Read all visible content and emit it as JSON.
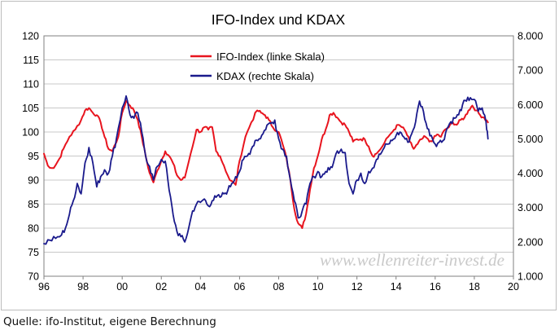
{
  "source": "Quelle: ifo-Institut, eigene Berechnung",
  "watermark": "www.wellenreiter-invest.de",
  "chart_data": {
    "type": "line",
    "title": "IFO-Index und KDAX",
    "xlabel": "",
    "ylabel": "",
    "x_range": [
      1996,
      2020
    ],
    "x_ticks": [
      1996,
      1998,
      2000,
      2002,
      2004,
      2006,
      2008,
      2010,
      2012,
      2014,
      2016,
      2018,
      2020
    ],
    "x_tick_labels": [
      "96",
      "98",
      "00",
      "02",
      "04",
      "06",
      "08",
      "10",
      "12",
      "14",
      "16",
      "18",
      "20"
    ],
    "y_left": {
      "range": [
        70,
        120
      ],
      "ticks": [
        70,
        75,
        80,
        85,
        90,
        95,
        100,
        105,
        110,
        115,
        120
      ],
      "tick_labels": [
        "70",
        "75",
        "80",
        "85",
        "90",
        "95",
        "100",
        "105",
        "110",
        "115",
        "120"
      ]
    },
    "y_right": {
      "range": [
        1000,
        8000
      ],
      "ticks": [
        1000,
        2000,
        3000,
        4000,
        5000,
        6000,
        7000,
        8000
      ],
      "tick_labels": [
        "1.000",
        "2.000",
        "3.000",
        "4.000",
        "5.000",
        "6.000",
        "7.000",
        "8.000"
      ]
    },
    "grid": true,
    "legend_position": "top-center",
    "series": [
      {
        "name": "IFO-Index (linke Skala)",
        "axis": "left",
        "color": "#e8141e",
        "x": [
          1996.0,
          1996.2,
          1996.5,
          1996.8,
          1997.0,
          1997.3,
          1997.6,
          1997.9,
          1998.1,
          1998.3,
          1998.5,
          1998.7,
          1998.9,
          1999.1,
          1999.3,
          1999.5,
          1999.8,
          2000.0,
          2000.2,
          2000.4,
          2000.6,
          2000.8,
          2001.0,
          2001.2,
          2001.4,
          2001.6,
          2001.8,
          2002.0,
          2002.2,
          2002.4,
          2002.6,
          2002.8,
          2003.0,
          2003.2,
          2003.5,
          2003.8,
          2004.0,
          2004.2,
          2004.4,
          2004.6,
          2004.8,
          2005.0,
          2005.2,
          2005.5,
          2005.8,
          2006.0,
          2006.3,
          2006.6,
          2006.9,
          2007.1,
          2007.3,
          2007.5,
          2007.7,
          2008.0,
          2008.2,
          2008.4,
          2008.6,
          2008.8,
          2009.0,
          2009.2,
          2009.4,
          2009.6,
          2009.8,
          2010.0,
          2010.2,
          2010.4,
          2010.6,
          2010.8,
          2011.0,
          2011.2,
          2011.4,
          2011.6,
          2011.8,
          2012.0,
          2012.2,
          2012.4,
          2012.6,
          2012.8,
          2013.0,
          2013.3,
          2013.6,
          2013.9,
          2014.1,
          2014.3,
          2014.5,
          2014.7,
          2014.9,
          2015.1,
          2015.3,
          2015.5,
          2015.7,
          2015.9,
          2016.1,
          2016.3,
          2016.5,
          2016.7,
          2016.9,
          2017.1,
          2017.3,
          2017.5,
          2017.7,
          2017.9,
          2018.1,
          2018.3,
          2018.5,
          2018.7
        ],
        "values": [
          95.5,
          93.0,
          92.5,
          94.5,
          96.5,
          99.0,
          100.5,
          102.5,
          104.5,
          105.0,
          104.0,
          103.5,
          102.0,
          99.0,
          96.5,
          96.0,
          99.0,
          104.0,
          106.5,
          105.5,
          104.5,
          102.5,
          99.0,
          95.0,
          91.5,
          89.5,
          92.0,
          94.0,
          96.0,
          95.0,
          93.5,
          91.0,
          90.0,
          90.5,
          95.5,
          100.5,
          100.0,
          101.0,
          100.5,
          101.0,
          96.0,
          95.0,
          93.0,
          90.0,
          89.0,
          94.0,
          99.0,
          102.0,
          104.5,
          104.0,
          103.5,
          102.5,
          101.0,
          100.0,
          97.5,
          94.5,
          90.0,
          84.0,
          81.0,
          80.0,
          83.0,
          88.0,
          92.5,
          95.0,
          98.5,
          100.5,
          103.5,
          104.0,
          103.0,
          102.0,
          101.5,
          100.0,
          98.0,
          98.5,
          98.5,
          98.5,
          97.0,
          95.0,
          95.5,
          97.0,
          99.0,
          100.5,
          101.5,
          101.0,
          100.0,
          98.0,
          96.5,
          97.5,
          98.5,
          99.0,
          98.0,
          98.5,
          99.5,
          99.0,
          100.5,
          101.0,
          102.0,
          101.5,
          102.5,
          103.0,
          104.5,
          105.5,
          104.5,
          103.5,
          103.0,
          102.0
        ]
      },
      {
        "name": "KDAX (rechte Skala)",
        "axis": "right",
        "color": "#1a1a8c",
        "x": [
          1996.0,
          1996.3,
          1996.6,
          1996.9,
          1997.1,
          1997.3,
          1997.5,
          1997.7,
          1997.9,
          1998.1,
          1998.3,
          1998.5,
          1998.7,
          1998.9,
          1999.1,
          1999.3,
          1999.5,
          1999.7,
          2000.0,
          2000.2,
          2000.4,
          2000.6,
          2000.8,
          2001.0,
          2001.2,
          2001.4,
          2001.6,
          2001.8,
          2002.0,
          2002.2,
          2002.4,
          2002.6,
          2002.8,
          2003.0,
          2003.2,
          2003.4,
          2003.6,
          2003.8,
          2004.0,
          2004.2,
          2004.4,
          2004.6,
          2004.8,
          2005.0,
          2005.2,
          2005.4,
          2005.6,
          2005.8,
          2006.0,
          2006.2,
          2006.4,
          2006.6,
          2006.8,
          2007.0,
          2007.2,
          2007.4,
          2007.6,
          2007.8,
          2008.0,
          2008.2,
          2008.4,
          2008.6,
          2008.8,
          2009.0,
          2009.2,
          2009.4,
          2009.6,
          2009.8,
          2010.0,
          2010.2,
          2010.4,
          2010.6,
          2010.8,
          2011.0,
          2011.2,
          2011.4,
          2011.6,
          2011.8,
          2012.0,
          2012.2,
          2012.4,
          2012.6,
          2012.8,
          2013.0,
          2013.2,
          2013.4,
          2013.6,
          2013.8,
          2014.0,
          2014.2,
          2014.4,
          2014.6,
          2014.8,
          2015.0,
          2015.2,
          2015.4,
          2015.6,
          2015.8,
          2016.0,
          2016.2,
          2016.4,
          2016.6,
          2016.8,
          2017.0,
          2017.2,
          2017.4,
          2017.6,
          2017.8,
          2018.0,
          2018.2,
          2018.4,
          2018.6,
          2018.7
        ],
        "values": [
          1950,
          2050,
          2100,
          2200,
          2400,
          2800,
          3200,
          3700,
          3400,
          4300,
          4750,
          4300,
          3600,
          3900,
          4100,
          4000,
          4500,
          5000,
          5900,
          6250,
          5700,
          5600,
          5750,
          5200,
          4500,
          4200,
          3800,
          4200,
          4400,
          4350,
          3500,
          2800,
          2300,
          2150,
          2000,
          2400,
          2900,
          3100,
          3150,
          3250,
          3050,
          3200,
          3300,
          3300,
          3400,
          3500,
          3700,
          3900,
          4050,
          4400,
          4500,
          4700,
          4950,
          5000,
          5150,
          5400,
          5450,
          5550,
          5000,
          4700,
          4500,
          3800,
          3200,
          2700,
          2900,
          3100,
          3700,
          3900,
          4050,
          3900,
          4050,
          4100,
          4300,
          4650,
          4700,
          4600,
          3700,
          3400,
          3800,
          4000,
          3700,
          4050,
          4150,
          4400,
          4550,
          4750,
          4850,
          4950,
          5100,
          5200,
          5050,
          4900,
          5150,
          5500,
          6100,
          5800,
          5300,
          5100,
          4850,
          4900,
          4950,
          5300,
          5500,
          5600,
          5700,
          6000,
          6100,
          6200,
          6150,
          5800,
          5900,
          5500,
          5000
        ]
      }
    ]
  }
}
